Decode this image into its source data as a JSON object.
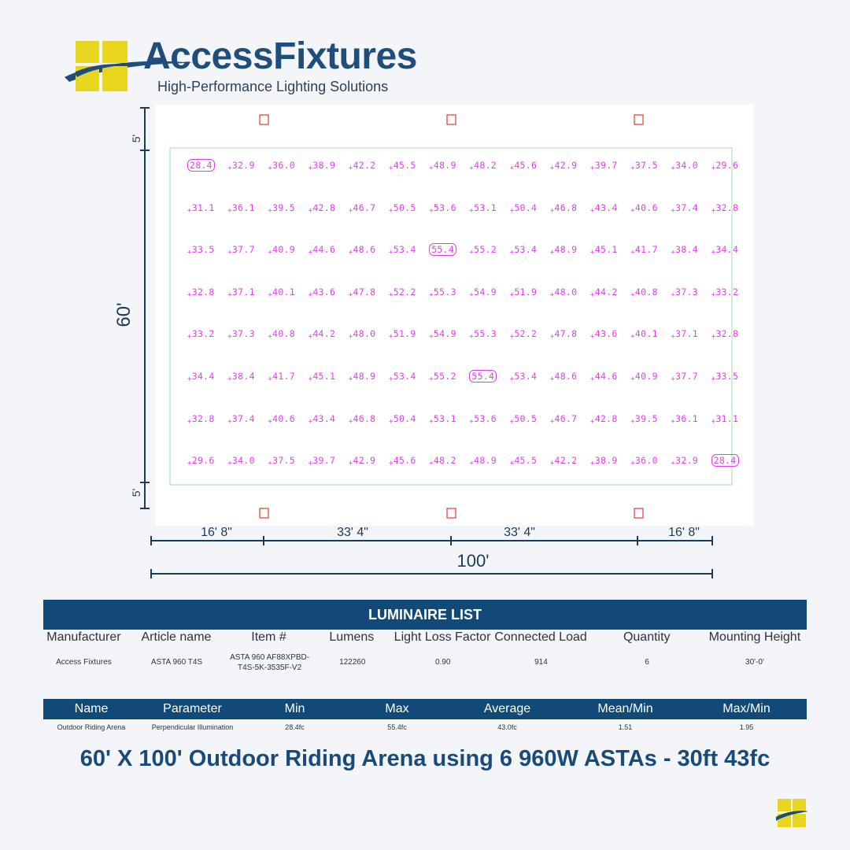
{
  "brand": {
    "name": "AccessFixtures",
    "tagline": "High-Performance Lighting Solutions",
    "accent": "#1f4e7d",
    "logo_color": "#e8d51e"
  },
  "plan": {
    "height_label": "60'",
    "width_label": "100'",
    "margin_label": "5'",
    "span_labels": [
      "16' 8\"",
      "33' 4\"",
      "33' 4\"",
      "16' 8\""
    ],
    "grid_color": "#e040e8",
    "boundary_color": "#9be39b",
    "fixture_color": "#e23b3b",
    "fc_rows": [
      [
        "28.4",
        "32.9",
        "36.0",
        "38.9",
        "42.2",
        "45.5",
        "48.9",
        "48.2",
        "45.6",
        "42.9",
        "39.7",
        "37.5",
        "34.0",
        "29.6"
      ],
      [
        "31.1",
        "36.1",
        "39.5",
        "42.8",
        "46.7",
        "50.5",
        "53.6",
        "53.1",
        "50.4",
        "46.8",
        "43.4",
        "40.6",
        "37.4",
        "32.8"
      ],
      [
        "33.5",
        "37.7",
        "40.9",
        "44.6",
        "48.6",
        "53.4",
        "55.4",
        "55.2",
        "53.4",
        "48.9",
        "45.1",
        "41.7",
        "38.4",
        "34.4"
      ],
      [
        "32.8",
        "37.1",
        "40.1",
        "43.6",
        "47.8",
        "52.2",
        "55.3",
        "54.9",
        "51.9",
        "48.0",
        "44.2",
        "40.8",
        "37.3",
        "33.2"
      ],
      [
        "33.2",
        "37.3",
        "40.8",
        "44.2",
        "48.0",
        "51.9",
        "54.9",
        "55.3",
        "52.2",
        "47.8",
        "43.6",
        "40.1",
        "37.1",
        "32.8"
      ],
      [
        "34.4",
        "38.4",
        "41.7",
        "45.1",
        "48.9",
        "53.4",
        "55.2",
        "55.4",
        "53.4",
        "48.6",
        "44.6",
        "40.9",
        "37.7",
        "33.5"
      ],
      [
        "32.8",
        "37.4",
        "40.6",
        "43.4",
        "46.8",
        "50.4",
        "53.1",
        "53.6",
        "50.5",
        "46.7",
        "42.8",
        "39.5",
        "36.1",
        "31.1"
      ],
      [
        "29.6",
        "34.0",
        "37.5",
        "39.7",
        "42.9",
        "45.6",
        "48.2",
        "48.9",
        "45.5",
        "42.2",
        "38.9",
        "36.0",
        "32.9",
        "28.4"
      ]
    ],
    "boxed_cells": [
      [
        0,
        0
      ],
      [
        2,
        6
      ],
      [
        5,
        7
      ],
      [
        7,
        13
      ]
    ]
  },
  "luminaire_list": {
    "title": "LUMINAIRE LIST",
    "columns": [
      "Manufacturer",
      "Article name",
      "Item #",
      "Lumens",
      "Light Loss Factor",
      "Connected Load",
      "Quantity",
      "Mounting Height"
    ],
    "row": [
      "Access Fixtures",
      "ASTA 960 T4S",
      "ASTA 960 AF88XPBD-T4S-5K-3535F-V2",
      "122260",
      "0.90",
      "914",
      "6",
      "30'-0'"
    ]
  },
  "parameters": {
    "columns": [
      "Name",
      "Parameter",
      "Min",
      "Max",
      "Average",
      "Mean/Min",
      "Max/Min"
    ],
    "row": [
      "Outdoor Riding Arena",
      "Perpendicular Illumination",
      "28.4fc",
      "55.4fc",
      "43.0fc",
      "1.51",
      "1.95"
    ]
  },
  "caption": "60' X 100' Outdoor Riding Arena using 6 960W ASTAs - 30ft 43fc"
}
